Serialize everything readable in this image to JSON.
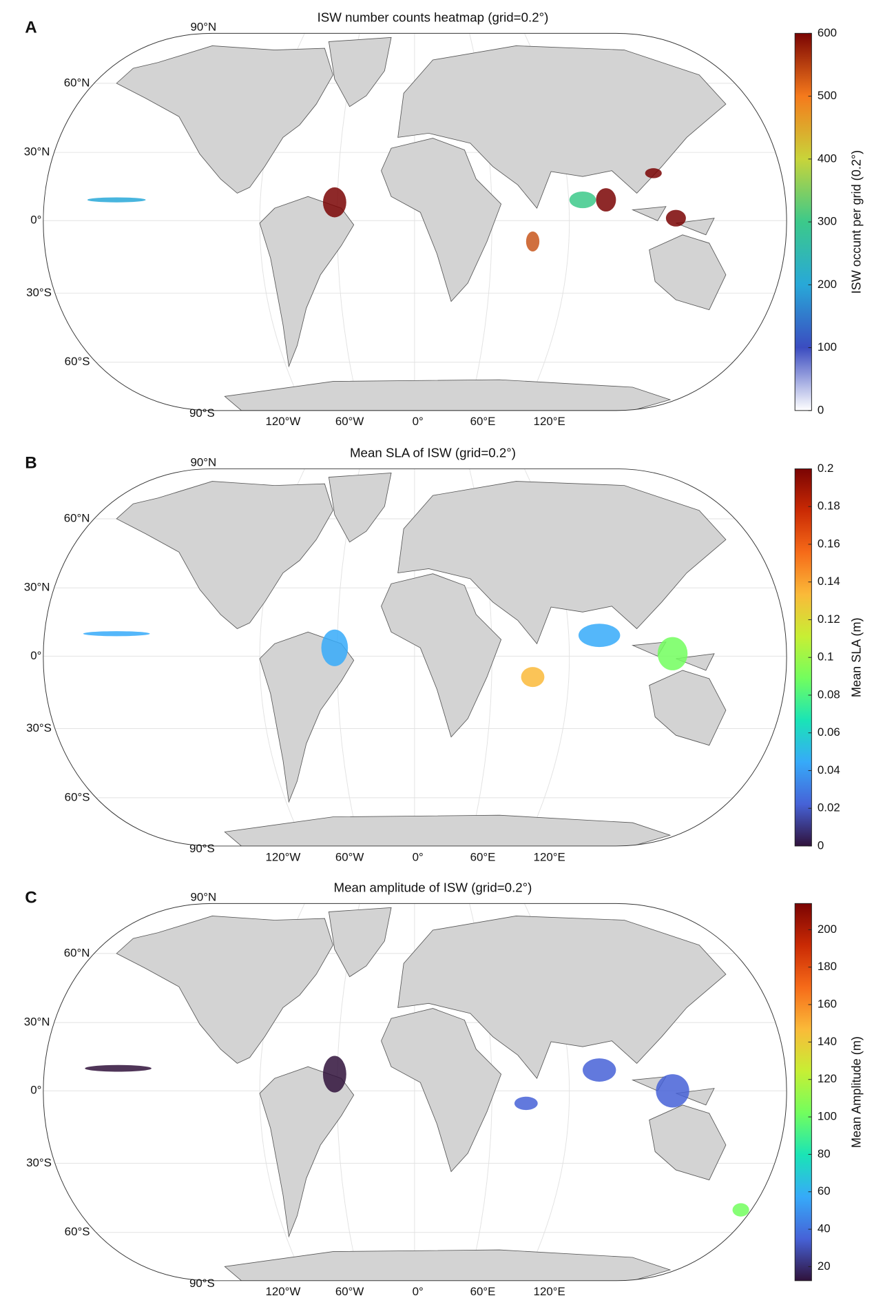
{
  "panels": [
    {
      "label": "A",
      "title": "ISW number counts heatmap (grid=0.2°)",
      "lat_labels": [
        "90°N",
        "60°N",
        "30°N",
        "0°",
        "30°S",
        "60°S",
        "90°S"
      ],
      "lon_labels": [
        "120°W",
        "60°W",
        "0°",
        "60°E",
        "120°E"
      ],
      "colorbar": {
        "label": "ISW occunt per grid (0.2°)",
        "clim": [
          0,
          600
        ],
        "ticks": [
          0,
          100,
          200,
          300,
          400,
          500,
          600
        ],
        "colormap": [
          "#ffffff",
          "#3b4cc0",
          "#28a8d8",
          "#3cc98a",
          "#c8d43a",
          "#f57a1c",
          "#7a0403"
        ]
      }
    },
    {
      "label": "B",
      "title": "Mean SLA of ISW (grid=0.2°)",
      "lat_labels": [
        "90°N",
        "60°N",
        "30°N",
        "0°",
        "30°S",
        "60°S",
        "90°S"
      ],
      "lon_labels": [
        "120°W",
        "60°W",
        "0°",
        "60°E",
        "120°E"
      ],
      "colorbar": {
        "label": "Mean SLA (m)",
        "clim": [
          0,
          0.2
        ],
        "ticks": [
          0,
          0.02,
          0.04,
          0.06,
          0.08,
          0.1,
          0.12,
          0.14,
          0.16,
          0.18,
          0.2
        ],
        "colormap": [
          "#30123b",
          "#4662d7",
          "#36aaf9",
          "#1ae4b6",
          "#72fe5e",
          "#c7ef34",
          "#faba39",
          "#f66b19",
          "#ca2a04",
          "#7a0403"
        ]
      }
    },
    {
      "label": "C",
      "title": "Mean amplitude of ISW (grid=0.2°)",
      "lat_labels": [
        "90°N",
        "60°N",
        "30°N",
        "0°",
        "30°S",
        "60°S",
        "90°S"
      ],
      "lon_labels": [
        "120°W",
        "60°W",
        "0°",
        "60°E",
        "120°E"
      ],
      "colorbar": {
        "label": "Mean Amplitude (m)",
        "clim": [
          12.5,
          214
        ],
        "ticks": [
          20,
          40,
          60,
          80,
          100,
          120,
          140,
          160,
          180,
          200
        ],
        "colormap": [
          "#30123b",
          "#4662d7",
          "#36aaf9",
          "#1ae4b6",
          "#72fe5e",
          "#c7ef34",
          "#faba39",
          "#f66b19",
          "#ca2a04",
          "#7a0403"
        ]
      }
    }
  ]
}
